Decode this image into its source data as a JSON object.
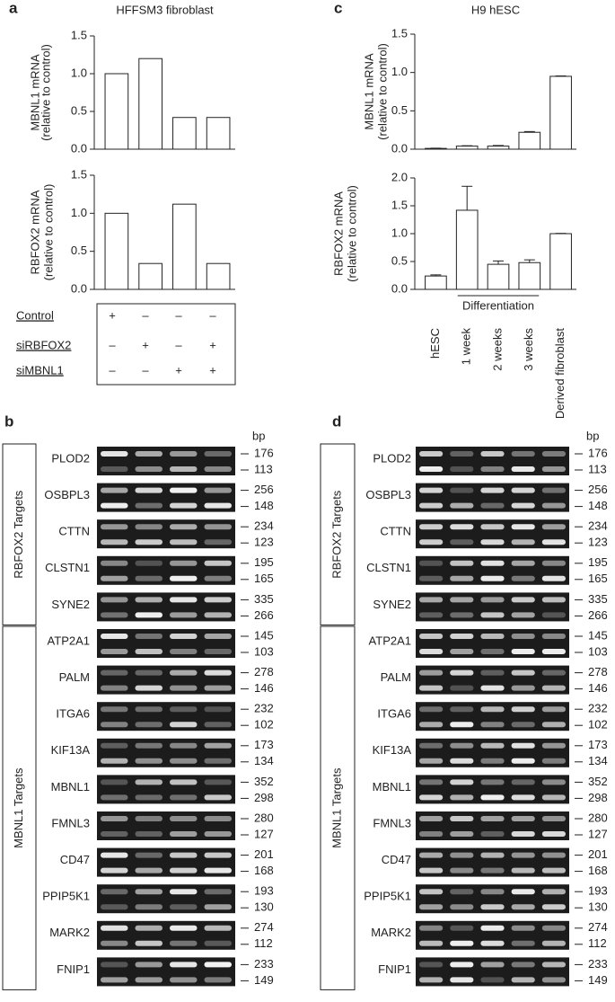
{
  "chart_data": [
    {
      "type": "bar",
      "panel": "a",
      "title": "HFFSM3 fibroblast",
      "ylabel": [
        "MBNL1 mRNA",
        "(relative to control)"
      ],
      "categories": [
        null,
        null,
        null,
        null
      ],
      "values": [
        1.0,
        1.2,
        0.42,
        0.42
      ],
      "color": "#ffffff",
      "ylim": [
        0,
        1.5
      ],
      "yticks": [
        {
          "value": 0,
          "label": "0.0"
        },
        0.5,
        {
          "value": 1,
          "label": "1.0"
        },
        1.5
      ]
    },
    {
      "type": "bar",
      "ylabel": [
        "RBFOX2 mRNA",
        "(relative to control)"
      ],
      "categories": [
        null,
        null,
        null,
        null
      ],
      "values": [
        1.0,
        0.34,
        1.12,
        0.34
      ],
      "color": "#ffffff",
      "ylim": [
        0,
        1.5
      ],
      "yticks": [
        {
          "value": 0,
          "label": "0.0"
        },
        0.5,
        {
          "value": 1,
          "label": "1.0"
        },
        1.5
      ]
    },
    {
      "type": "bar",
      "panel": "c",
      "title": "H9 hESC",
      "ylabel": [
        "MBNL1 mRNA",
        "(relative to control)"
      ],
      "categories": [
        null,
        null,
        null,
        null,
        null
      ],
      "values": [
        0.01,
        0.04,
        0.04,
        0.22,
        0.95
      ],
      "errors": [
        0.003,
        0.005,
        0.008,
        0.01,
        0.005
      ],
      "color": "#ffffff",
      "ylim": [
        0,
        1.5
      ],
      "yticks": [
        {
          "value": 0,
          "label": "0.0"
        },
        0.5,
        {
          "value": 1,
          "label": "1.0"
        },
        1.5
      ]
    },
    {
      "type": "bar",
      "ylabel": [
        "RBFOX2 mRNA",
        "(relative to control)"
      ],
      "categories": [
        "hESC",
        "1 week",
        "2 weeks",
        "3 weeks",
        "Derived fibroblast"
      ],
      "values": [
        0.24,
        1.42,
        0.45,
        0.48,
        1.0
      ],
      "errors": [
        0.02,
        0.43,
        0.06,
        0.05,
        0.005
      ],
      "color": "#ffffff",
      "ylim": [
        0,
        2
      ],
      "yticks": [
        {
          "value": 0,
          "label": "0.0"
        },
        0.5,
        {
          "value": 1,
          "label": "1.0"
        },
        1.5,
        {
          "value": 2,
          "label": "2.0"
        }
      ],
      "annotation": "Differentiation"
    }
  ],
  "treatment_table": {
    "rows": [
      {
        "label": "Control",
        "signs": [
          "+",
          "–",
          "–",
          "–"
        ]
      },
      {
        "label": "siRBFOX2",
        "signs": [
          "–",
          "+",
          "–",
          "+"
        ]
      },
      {
        "label": "siMBNL1",
        "signs": [
          "–",
          "–",
          "+",
          "+"
        ]
      }
    ]
  },
  "gel_panels": [
    {
      "panel": "b",
      "unit": "bp",
      "groups": [
        {
          "label": "RBFOX2 Targets",
          "genes": [
            {
              "name": "PLOD2",
              "sizes": [
                176,
                113
              ]
            },
            {
              "name": "OSBPL3",
              "sizes": [
                256,
                148
              ]
            },
            {
              "name": "CTTN",
              "sizes": [
                234,
                123
              ]
            },
            {
              "name": "CLSTN1",
              "sizes": [
                195,
                165
              ]
            },
            {
              "name": "SYNE2",
              "sizes": [
                335,
                266
              ]
            }
          ]
        },
        {
          "label": "MBNL1 Targets",
          "genes": [
            {
              "name": "ATP2A1",
              "sizes": [
                145,
                103
              ]
            },
            {
              "name": "PALM",
              "sizes": [
                278,
                146
              ]
            },
            {
              "name": "ITGA6",
              "sizes": [
                232,
                102
              ]
            },
            {
              "name": "KIF13A",
              "sizes": [
                173,
                134
              ]
            },
            {
              "name": "MBNL1",
              "sizes": [
                352,
                298
              ]
            },
            {
              "name": "FMNL3",
              "sizes": [
                280,
                127
              ]
            },
            {
              "name": "CD47",
              "sizes": [
                201,
                168
              ]
            },
            {
              "name": "PPIP5K1",
              "sizes": [
                193,
                130
              ]
            },
            {
              "name": "MARK2",
              "sizes": [
                274,
                112
              ]
            },
            {
              "name": "FNIP1",
              "sizes": [
                233,
                149
              ]
            }
          ]
        }
      ]
    },
    {
      "panel": "d",
      "unit": "bp",
      "groups": [
        {
          "label": "RBFOX2 Targets",
          "genes": [
            {
              "name": "PLOD2",
              "sizes": [
                176,
                113
              ]
            },
            {
              "name": "OSBPL3",
              "sizes": [
                256,
                148
              ]
            },
            {
              "name": "CTTN",
              "sizes": [
                234,
                123
              ]
            },
            {
              "name": "CLSTN1",
              "sizes": [
                195,
                165
              ]
            },
            {
              "name": "SYNE2",
              "sizes": [
                335,
                266
              ]
            }
          ]
        },
        {
          "label": "MBNL1 Targets",
          "genes": [
            {
              "name": "ATP2A1",
              "sizes": [
                145,
                103
              ]
            },
            {
              "name": "PALM",
              "sizes": [
                278,
                146
              ]
            },
            {
              "name": "ITGA6",
              "sizes": [
                232,
                102
              ]
            },
            {
              "name": "KIF13A",
              "sizes": [
                173,
                134
              ]
            },
            {
              "name": "MBNL1",
              "sizes": [
                352,
                298
              ]
            },
            {
              "name": "FMNL3",
              "sizes": [
                280,
                127
              ]
            },
            {
              "name": "CD47",
              "sizes": [
                201,
                168
              ]
            },
            {
              "name": "PPIP5K1",
              "sizes": [
                193,
                130
              ]
            },
            {
              "name": "MARK2",
              "sizes": [
                274,
                112
              ]
            },
            {
              "name": "FNIP1",
              "sizes": [
                233,
                149
              ]
            }
          ]
        }
      ]
    }
  ]
}
